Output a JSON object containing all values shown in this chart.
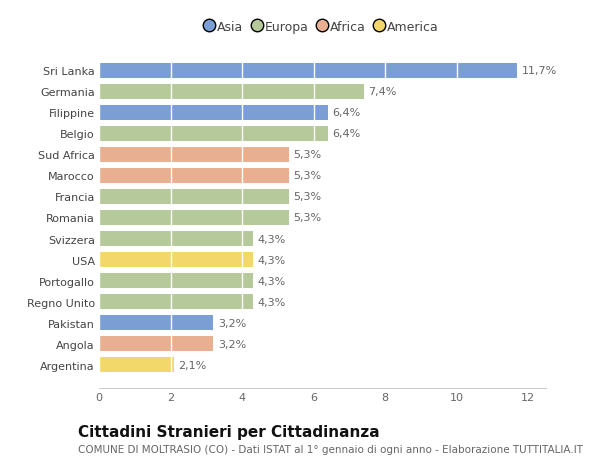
{
  "categories": [
    "Sri Lanka",
    "Germania",
    "Filippine",
    "Belgio",
    "Sud Africa",
    "Marocco",
    "Francia",
    "Romania",
    "Svizzera",
    "USA",
    "Portogallo",
    "Regno Unito",
    "Pakistan",
    "Angola",
    "Argentina"
  ],
  "values": [
    11.7,
    7.4,
    6.4,
    6.4,
    5.3,
    5.3,
    5.3,
    5.3,
    4.3,
    4.3,
    4.3,
    4.3,
    3.2,
    3.2,
    2.1
  ],
  "labels": [
    "11,7%",
    "7,4%",
    "6,4%",
    "6,4%",
    "5,3%",
    "5,3%",
    "5,3%",
    "5,3%",
    "4,3%",
    "4,3%",
    "4,3%",
    "4,3%",
    "3,2%",
    "3,2%",
    "2,1%"
  ],
  "colors": [
    "#7b9fd4",
    "#b5c99a",
    "#7b9fd4",
    "#b5c99a",
    "#e8b090",
    "#e8b090",
    "#b5c99a",
    "#b5c99a",
    "#b5c99a",
    "#f2d76b",
    "#b5c99a",
    "#b5c99a",
    "#7b9fd4",
    "#e8b090",
    "#f2d76b"
  ],
  "legend": {
    "Asia": "#7b9fd4",
    "Europa": "#b5c99a",
    "Africa": "#e8b090",
    "America": "#f2d76b"
  },
  "title": "Cittadini Stranieri per Cittadinanza",
  "subtitle": "COMUNE DI MOLTRASIO (CO) - Dati ISTAT al 1° gennaio di ogni anno - Elaborazione TUTTITALIA.IT",
  "xlim": [
    0,
    12.5
  ],
  "xticks": [
    0,
    2,
    4,
    6,
    8,
    10,
    12
  ],
  "background_color": "#ffffff",
  "bar_height": 0.72,
  "title_fontsize": 11,
  "subtitle_fontsize": 7.5,
  "label_fontsize": 8,
  "tick_fontsize": 8,
  "legend_fontsize": 9
}
